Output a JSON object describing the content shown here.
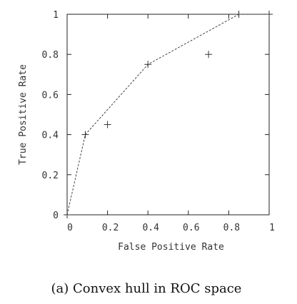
{
  "chart_data": {
    "type": "scatter",
    "caption": "(a) Convex hull in ROC space",
    "xlabel": "False Positive Rate",
    "ylabel": "True Positive Rate",
    "xlim": [
      0,
      1
    ],
    "ylim": [
      0,
      1
    ],
    "x_ticks": [
      "0",
      "0.2",
      "0.4",
      "0.6",
      "0.8",
      "1"
    ],
    "y_ticks": [
      "0",
      "0.2",
      "0.4",
      "0.6",
      "0.8",
      "1"
    ],
    "grid": false,
    "series": [
      {
        "marker": "plus",
        "points": [
          {
            "x": 0.0,
            "y": 0.0
          },
          {
            "x": 0.09,
            "y": 0.4
          },
          {
            "x": 0.2,
            "y": 0.45
          },
          {
            "x": 0.4,
            "y": 0.75
          },
          {
            "x": 0.7,
            "y": 0.8
          },
          {
            "x": 0.85,
            "y": 1.0
          },
          {
            "x": 1.0,
            "y": 1.0
          }
        ]
      }
    ],
    "hull": {
      "style": "dashed",
      "points": [
        {
          "x": 0.0,
          "y": 0.0
        },
        {
          "x": 0.09,
          "y": 0.4
        },
        {
          "x": 0.4,
          "y": 0.75
        },
        {
          "x": 0.85,
          "y": 1.0
        },
        {
          "x": 1.0,
          "y": 1.0
        }
      ]
    }
  }
}
